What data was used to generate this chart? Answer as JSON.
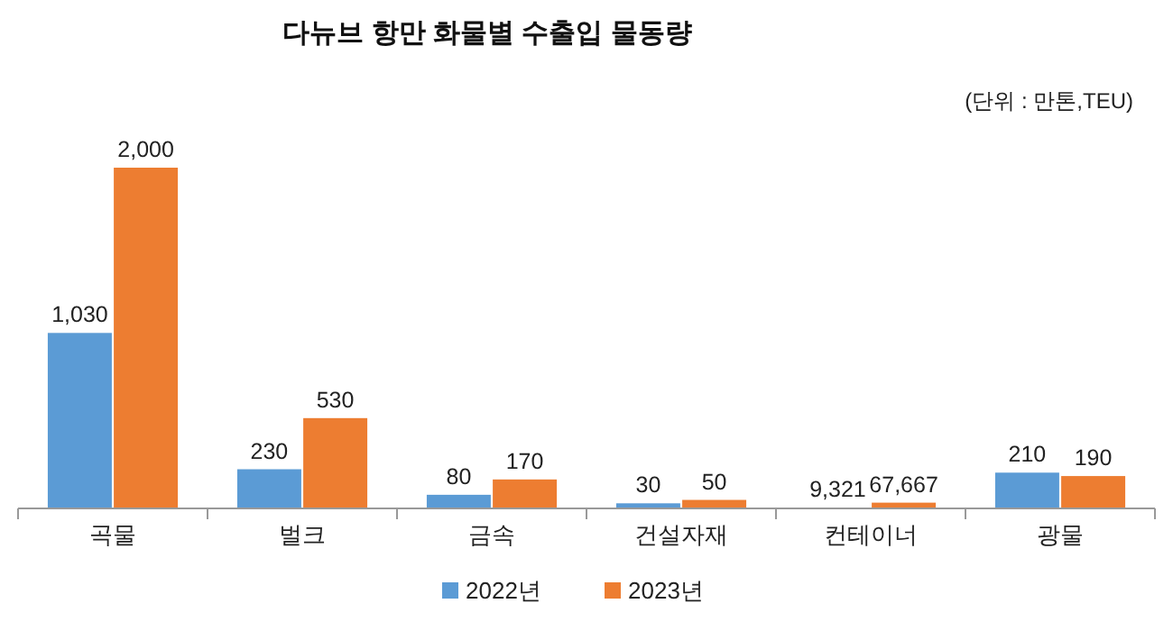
{
  "chart_data": {
    "type": "bar",
    "title": "다뉴브 항만 화물별 수출입 물동량",
    "annotations": [
      "(단위 : 만톤,TEU)"
    ],
    "categories": [
      "곡물",
      "벌크",
      "금속",
      "건설자재",
      "컨테이너",
      "광물"
    ],
    "series": [
      {
        "name": "2022년",
        "color": "#5b9bd5",
        "values": [
          1030,
          230,
          80,
          30,
          null,
          210
        ],
        "value_labels": [
          "1,030",
          "230",
          "80",
          "30",
          null,
          "210"
        ]
      },
      {
        "name": "2023년",
        "color": "#ed7d31",
        "values": [
          2000,
          530,
          170,
          50,
          null,
          190
        ],
        "value_labels": [
          "2,000",
          "530",
          "170",
          "50",
          null,
          "190"
        ]
      },
      {
        "color": "#5b9bd5",
        "axis": "y2",
        "values": [
          null,
          null,
          null,
          null,
          9321,
          null
        ],
        "value_labels": [
          null,
          null,
          null,
          null,
          "9,321",
          null
        ]
      },
      {
        "color": "#ed7d31",
        "axis": "y2",
        "values": [
          null,
          null,
          null,
          null,
          67667,
          null
        ],
        "value_labels": [
          null,
          null,
          null,
          null,
          "67,667",
          null
        ]
      }
    ],
    "ylim": [
      0,
      2000
    ],
    "y2lim": [
      0,
      4000000
    ],
    "tick_labels": false,
    "legend": "bottom"
  }
}
